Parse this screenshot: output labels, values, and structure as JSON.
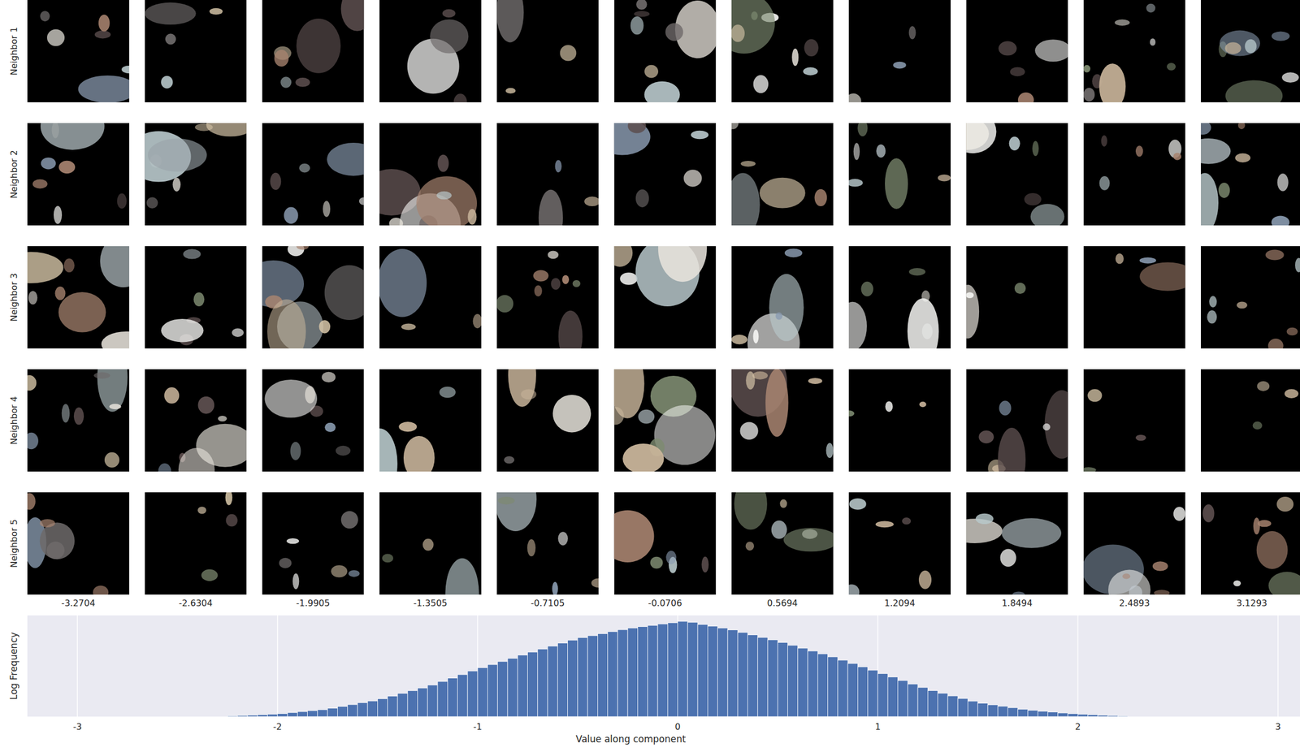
{
  "chart_data": [
    {
      "type": "image_grid",
      "rows": [
        "Neighbor 1",
        "Neighbor 2",
        "Neighbor 3",
        "Neighbor 4",
        "Neighbor 5"
      ],
      "x": [
        -3.2704,
        -2.6304,
        -1.9905,
        -1.3505,
        -0.7105,
        -0.0706,
        0.5694,
        1.2094,
        1.8494,
        2.4893,
        3.1293
      ]
    },
    {
      "type": "histogram",
      "xlabel": "Value along component",
      "ylabel": "Log Frequency",
      "color": "#4c72b0",
      "grid": true,
      "tick_labels": "x",
      "xlim": [
        -3.25,
        3.11
      ],
      "ylim": [
        0,
        122
      ],
      "xticks": [
        -3,
        -2,
        -1,
        0,
        1,
        2,
        3
      ],
      "bins": [
        -2.25,
        -2.2,
        -2.15,
        -2.1,
        -2.05,
        -2.0,
        -1.95,
        -1.9,
        -1.85,
        -1.8,
        -1.75,
        -1.7,
        -1.65,
        -1.6,
        -1.55,
        -1.5,
        -1.45,
        -1.4,
        -1.35,
        -1.3,
        -1.25,
        -1.2,
        -1.15,
        -1.1,
        -1.05,
        -1.0,
        -0.95,
        -0.9,
        -0.85,
        -0.8,
        -0.75,
        -0.7,
        -0.65,
        -0.6,
        -0.55,
        -0.5,
        -0.45,
        -0.4,
        -0.35,
        -0.3,
        -0.25,
        -0.2,
        -0.15,
        -0.1,
        -0.05,
        0.0,
        0.05,
        0.1,
        0.15,
        0.2,
        0.25,
        0.3,
        0.35,
        0.4,
        0.45,
        0.5,
        0.55,
        0.6,
        0.65,
        0.7,
        0.75,
        0.8,
        0.85,
        0.9,
        0.95,
        1.0,
        1.05,
        1.1,
        1.15,
        1.2,
        1.25,
        1.3,
        1.35,
        1.4,
        1.45,
        1.5,
        1.55,
        1.6,
        1.65,
        1.7,
        1.75,
        1.8,
        1.85,
        1.9,
        1.95,
        2.0,
        2.05,
        2.1,
        2.15,
        2.2,
        2.25
      ],
      "counts": [
        0.8,
        1.3,
        1.8,
        2.3,
        2.8,
        3.6,
        4.8,
        6,
        7.2,
        8.4,
        10.1,
        12.3,
        14.5,
        16.7,
        18.9,
        21.6,
        24.8,
        28,
        31.2,
        34.4,
        38.1,
        42.3,
        46.5,
        50.7,
        54.9,
        58.9,
        62.7,
        66.5,
        70.3,
        74.1,
        77.8,
        81.4,
        85,
        88.6,
        92.2,
        95.2,
        97.6,
        100,
        102.4,
        104.8,
        106.8,
        108.4,
        110,
        111.6,
        113.2,
        114.8,
        113.6,
        111,
        109,
        106.8,
        104.5,
        101.5,
        98.5,
        95.5,
        92.5,
        89.3,
        85.9,
        82.5,
        79.1,
        75.7,
        72,
        68,
        64,
        60,
        56,
        51.9,
        47.7,
        43.5,
        39.3,
        35.1,
        31.4,
        28.2,
        25,
        21.8,
        18.6,
        16.1,
        14.3,
        12.5,
        10.7,
        8.9,
        7.5,
        6.5,
        5.5,
        4.5,
        3.5,
        2.75,
        2.25,
        1.75,
        1.25,
        0.75
      ]
    }
  ]
}
